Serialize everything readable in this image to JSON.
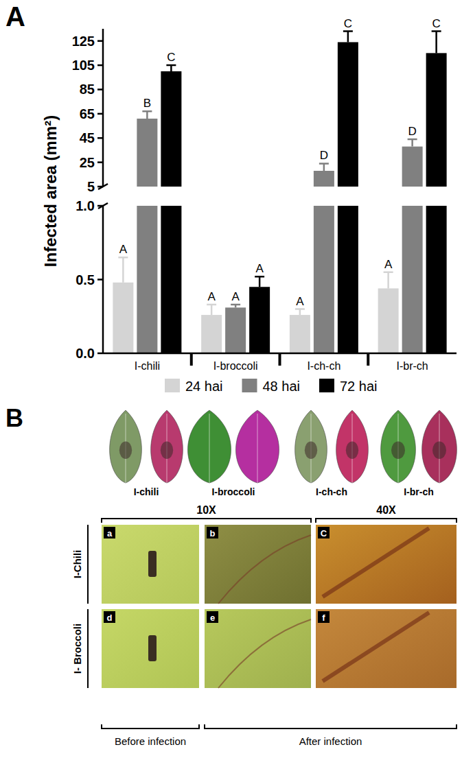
{
  "chart_data": {
    "type": "bar",
    "panel_label": "A",
    "y_label": "Infected area (mm²)",
    "categories": [
      "I-chili",
      "I-broccoli",
      "I-ch-ch",
      "I-br-ch"
    ],
    "series": [
      {
        "name": "24 hai",
        "color": "#d4d4d4",
        "values": [
          0.48,
          0.26,
          0.26,
          0.44
        ],
        "errors": [
          0.17,
          0.07,
          0.04,
          0.11
        ],
        "letters": [
          "A",
          "A",
          "A",
          "A"
        ]
      },
      {
        "name": "48 hai",
        "color": "#808080",
        "values": [
          61,
          0.31,
          18,
          38
        ],
        "errors": [
          6,
          0.02,
          6,
          6
        ],
        "letters": [
          "B",
          "A",
          "D",
          "D"
        ]
      },
      {
        "name": "72 hai",
        "color": "#000000",
        "values": [
          100,
          0.45,
          124,
          115
        ],
        "errors": [
          5,
          0.07,
          9,
          18
        ],
        "letters": [
          "C",
          "A",
          "C",
          "C"
        ]
      }
    ],
    "ylim": [
      0,
      135
    ],
    "y_break": [
      1,
      5
    ],
    "yticks": [
      {
        "value": 0,
        "label": "0.0"
      },
      {
        "value": 0.5,
        "label": "0.5"
      },
      {
        "value": 1,
        "label": "1.0"
      },
      5,
      25,
      45,
      65,
      85,
      105,
      125
    ],
    "legend": "bottom"
  },
  "figure_b": {
    "panel_label": "B",
    "leaf_labels": [
      "I-chili",
      "I-broccoli",
      "I-ch-ch",
      "I-br-ch"
    ],
    "magnifications": [
      "10X",
      "40X"
    ],
    "rows": [
      "I-Chili",
      "I- Broccoli"
    ],
    "image_letters": [
      [
        "a",
        "b",
        "C"
      ],
      [
        "d",
        "e",
        "f"
      ]
    ],
    "stages": [
      "Before infection",
      "After infection"
    ]
  }
}
